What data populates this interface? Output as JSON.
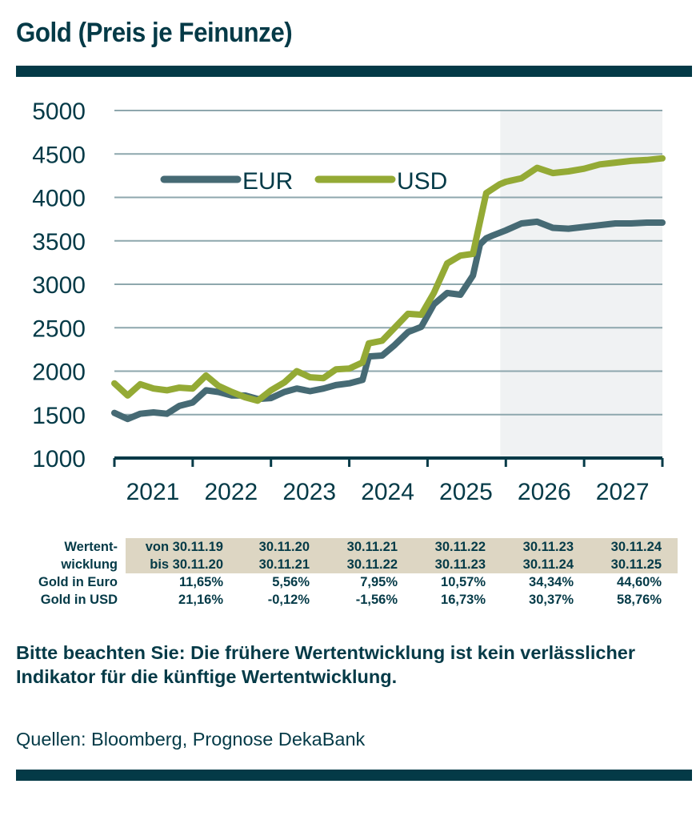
{
  "title": "Gold (Preis je Feinunze)",
  "colors": {
    "dark": "#043a47",
    "eur": "#466a74",
    "usd": "#94aa35",
    "forecast_bg": "#f0f2f3",
    "grid": "#8ea7ad",
    "table_header_bg": "#ddd6c3"
  },
  "chart_data": {
    "type": "line",
    "title": "Gold (Preis je Feinunze)",
    "xlabel": "",
    "ylabel": "",
    "ylim": [
      1000,
      5000
    ],
    "xlim": [
      2021.0,
      2028.0
    ],
    "y_ticks": [
      "1000",
      "1500",
      "2000",
      "2500",
      "3000",
      "3500",
      "4000",
      "4500",
      "5000"
    ],
    "x_ticks": [
      "2021",
      "2022",
      "2023",
      "2024",
      "2025",
      "2026",
      "2027"
    ],
    "grid": true,
    "legend_position": "top-left",
    "forecast_region": {
      "from": 2026.0,
      "to": 2028.0
    },
    "series": [
      {
        "name": "EUR",
        "x": [
          2021.0,
          2021.17,
          2021.33,
          2021.5,
          2021.67,
          2021.83,
          2022.0,
          2022.17,
          2022.33,
          2022.5,
          2022.67,
          2022.83,
          2023.0,
          2023.17,
          2023.33,
          2023.5,
          2023.67,
          2023.83,
          2024.0,
          2024.17,
          2024.25,
          2024.42,
          2024.58,
          2024.75,
          2024.92,
          2025.08,
          2025.25,
          2025.42,
          2025.58,
          2025.67,
          2025.75,
          2025.83,
          2026.0,
          2026.2,
          2026.4,
          2026.6,
          2026.8,
          2027.0,
          2027.2,
          2027.4,
          2027.6,
          2027.8,
          2028.0
        ],
        "values": [
          1520,
          1450,
          1510,
          1525,
          1510,
          1600,
          1640,
          1780,
          1760,
          1720,
          1720,
          1680,
          1690,
          1760,
          1800,
          1770,
          1800,
          1840,
          1860,
          1900,
          2170,
          2180,
          2300,
          2450,
          2510,
          2770,
          2900,
          2880,
          3100,
          3460,
          3530,
          3560,
          3620,
          3700,
          3720,
          3650,
          3640,
          3660,
          3680,
          3700,
          3700,
          3710,
          3710
        ]
      },
      {
        "name": "USD",
        "x": [
          2021.0,
          2021.17,
          2021.33,
          2021.5,
          2021.67,
          2021.83,
          2022.0,
          2022.17,
          2022.33,
          2022.5,
          2022.67,
          2022.83,
          2023.0,
          2023.17,
          2023.33,
          2023.5,
          2023.67,
          2023.83,
          2024.0,
          2024.17,
          2024.25,
          2024.42,
          2024.58,
          2024.75,
          2024.92,
          2025.08,
          2025.25,
          2025.42,
          2025.58,
          2025.75,
          2025.92,
          2026.0,
          2026.2,
          2026.4,
          2026.6,
          2026.8,
          2027.0,
          2027.2,
          2027.4,
          2027.6,
          2027.8,
          2028.0
        ],
        "values": [
          1860,
          1720,
          1850,
          1800,
          1780,
          1810,
          1800,
          1950,
          1830,
          1760,
          1700,
          1660,
          1780,
          1870,
          2000,
          1930,
          1920,
          2020,
          2030,
          2100,
          2320,
          2350,
          2500,
          2660,
          2650,
          2900,
          3240,
          3330,
          3350,
          4050,
          4150,
          4180,
          4220,
          4340,
          4280,
          4300,
          4330,
          4380,
          4400,
          4420,
          4430,
          4450
        ]
      }
    ]
  },
  "table": {
    "row_header_top": "Wertent-",
    "row_header_bottom": "wicklung",
    "periods_from": [
      "von 30.11.19",
      "30.11.20",
      "30.11.21",
      "30.11.22",
      "30.11.23",
      "30.11.24"
    ],
    "periods_to": [
      "bis 30.11.20",
      "30.11.21",
      "30.11.22",
      "30.11.23",
      "30.11.24",
      "30.11.25"
    ],
    "rows": [
      {
        "label": "Gold in Euro",
        "values": [
          "11,65%",
          "5,56%",
          "7,95%",
          "10,57%",
          "34,34%",
          "44,60%"
        ]
      },
      {
        "label": "Gold in USD",
        "values": [
          "21,16%",
          "-0,12%",
          "-1,56%",
          "16,73%",
          "30,37%",
          "58,76%"
        ]
      }
    ]
  },
  "disclaimer": "Bitte beachten Sie: Die frühere Wertentwicklung ist kein verlässlicher Indikator für die künftige Wertent­wicklung.",
  "source": "Quellen: Bloomberg, Prognose DekaBank"
}
